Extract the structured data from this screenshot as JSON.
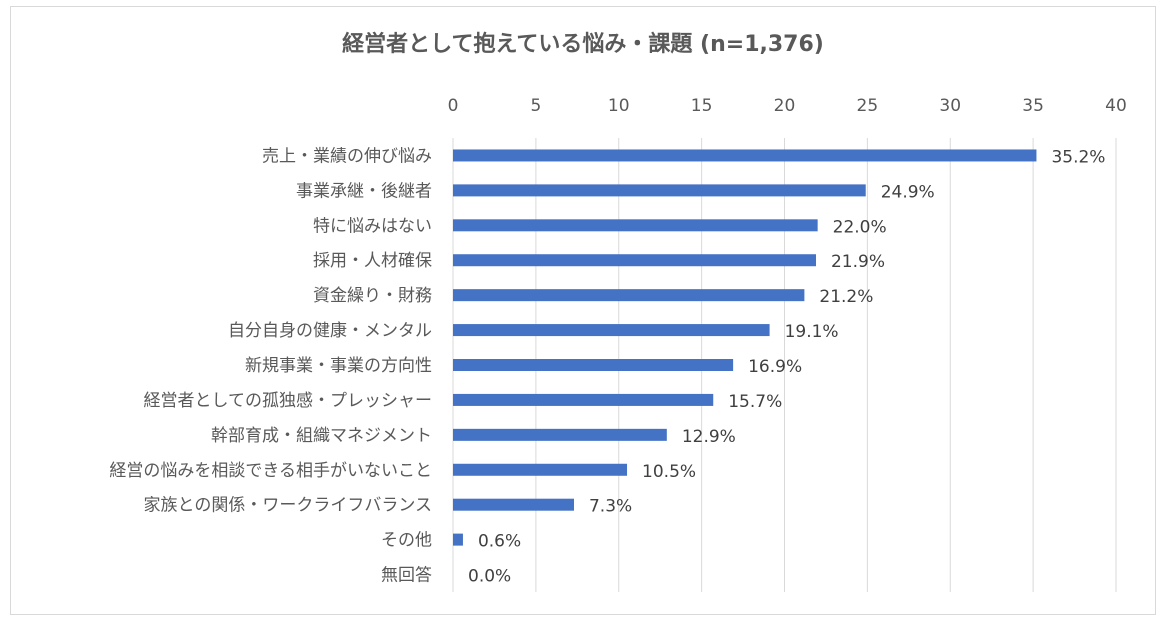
{
  "chart_data": {
    "type": "bar",
    "orientation": "horizontal",
    "title": "経営者として抱えている悩み・課題 (n=1,376)",
    "xlabel": "",
    "ylabel": "",
    "xlim": [
      0,
      40
    ],
    "ticks": [
      0,
      5,
      10,
      15,
      20,
      25,
      30,
      35,
      40
    ],
    "grid": true,
    "legend": "none",
    "bar_color": "#4472c4",
    "categories": [
      "売上・業績の伸び悩み",
      "事業承継・後継者",
      "特に悩みはない",
      "採用・人材確保",
      "資金繰り・財務",
      "自分自身の健康・メンタル",
      "新規事業・事業の方向性",
      "経営者としての孤独感・プレッシャー",
      "幹部育成・組織マネジメント",
      "経営の悩みを相談できる相手がいないこと",
      "家族との関係・ワークライフバランス",
      "その他",
      "無回答"
    ],
    "values": [
      35.2,
      24.9,
      22.0,
      21.9,
      21.2,
      19.1,
      16.9,
      15.7,
      12.9,
      10.5,
      7.3,
      0.6,
      0.0
    ],
    "data_labels": [
      "35.2%",
      "24.9%",
      "22.0%",
      "21.9%",
      "21.2%",
      "19.1%",
      "16.9%",
      "15.7%",
      "12.9%",
      "10.5%",
      "7.3%",
      "0.6%",
      "0.0%"
    ]
  }
}
